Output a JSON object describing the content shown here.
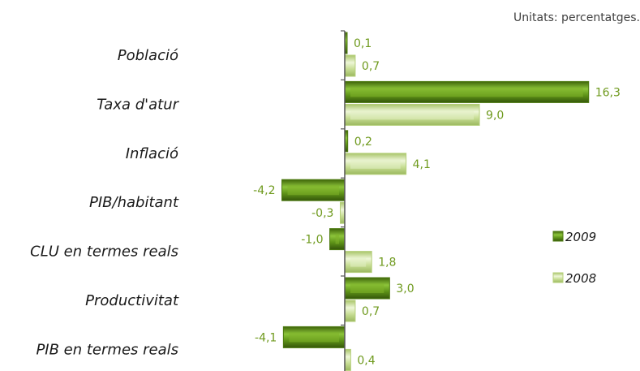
{
  "units_note": "Unitats: percentatges.",
  "colors": {
    "s2009": "#4d7a10",
    "s2009_light": "#7fb32a",
    "s2008": "#b5cf7a",
    "s2008_light": "#e2efc4",
    "value_text": "#6f9a1e"
  },
  "chart_data": {
    "type": "bar",
    "orientation": "horizontal",
    "categories": [
      "Població",
      "Taxa d'atur",
      "Inflació",
      "PIB/habitant",
      "CLU en termes reals",
      "Productivitat",
      "PIB en termes reals"
    ],
    "series": [
      {
        "name": "2009",
        "values": [
          0.1,
          16.3,
          0.2,
          -4.2,
          -1.0,
          3.0,
          -4.1
        ],
        "labels": [
          "0,1",
          "16,3",
          "0,2",
          "-4,2",
          "-1,0",
          "3,0",
          "-4,1"
        ]
      },
      {
        "name": "2008",
        "values": [
          0.7,
          9.0,
          4.1,
          -0.3,
          1.8,
          0.7,
          0.4
        ],
        "labels": [
          "0,7",
          "9,0",
          "4,1",
          "-0,3",
          "1,8",
          "0,7",
          "0,4"
        ]
      }
    ],
    "legend": "right",
    "grid": false
  }
}
